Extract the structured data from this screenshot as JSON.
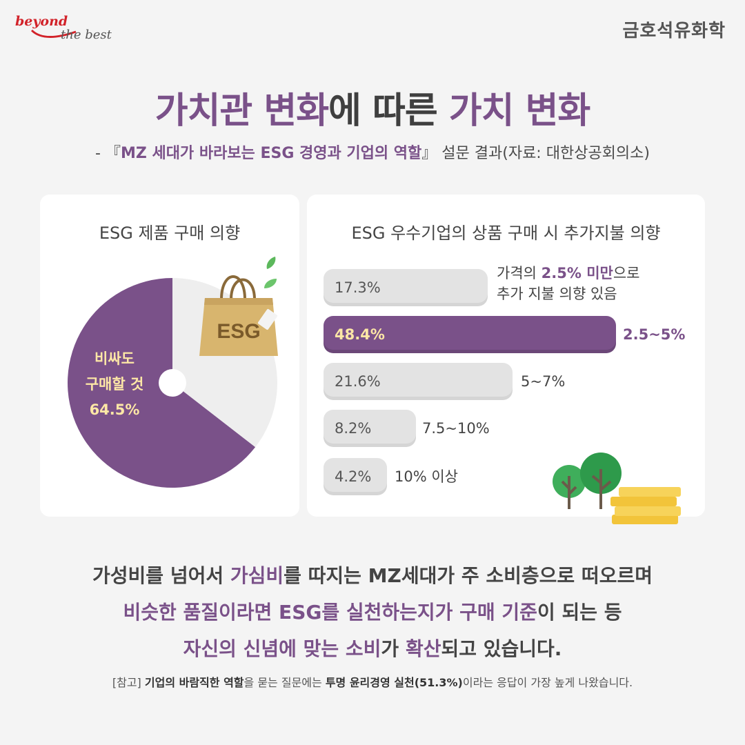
{
  "brand": {
    "tagline_1": "beyond",
    "tagline_2": "the best",
    "company": "금호석유화학"
  },
  "title": {
    "part1": "가치관 변화",
    "part2": "에 따른 ",
    "part3": "가치 변화"
  },
  "subtitle": {
    "prefix": "- 『",
    "survey": "MZ 세대가 바라보는 ESG 경영과 기업의 역할",
    "suffix": "』 설문 결과(자료: 대한상공회의소)"
  },
  "left_card": {
    "title": "ESG 제품 구매 의향",
    "pie_label_1": "비싸도",
    "pie_label_2": "구매할 것",
    "pie_value": "64.5%",
    "bag_text": "ESG"
  },
  "right_card": {
    "title": "ESG 우수기업의 상품 구매 시 추가지불 의향",
    "bars": [
      {
        "value": "17.3%",
        "label_pre": "가격의 ",
        "label_hl": "2.5% 미만",
        "label_post": "으로",
        "label_line2": "추가 지불 의향 있음"
      },
      {
        "value": "48.4%",
        "label": "2.5~5%"
      },
      {
        "value": "21.6%",
        "label": "5~7%"
      },
      {
        "value": "8.2%",
        "label": "7.5~10%"
      },
      {
        "value": "4.2%",
        "label": "10% 이상"
      }
    ]
  },
  "chart_data": [
    {
      "type": "pie",
      "title": "ESG 제품 구매 의향",
      "slices": [
        {
          "name": "비싸도 구매할 것",
          "value": 64.5
        },
        {
          "value": 35.5
        }
      ],
      "colors": [
        "#7a5189",
        "#eeeeee"
      ]
    },
    {
      "type": "bar",
      "title": "ESG 우수기업의 상품 구매 시 추가지불 의향",
      "categories": [
        "2.5% 미만",
        "2.5~5%",
        "5~7%",
        "7.5~10%",
        "10% 이상"
      ],
      "values": [
        17.3,
        48.4,
        21.6,
        8.2,
        4.2
      ],
      "colors": [
        "#e3e3e3",
        "#7a5189",
        "#e3e3e3",
        "#e3e3e3",
        "#e3e3e3"
      ]
    }
  ],
  "body": {
    "l1a": "가성비를 넘어서 ",
    "l1b": "가심비",
    "l1c": "를 따지는 MZ세대가 주 소비층으로 떠오르며",
    "l2a": "비슷한 품질이라면 ESG를 실천하는지가 구매 기준",
    "l2b": "이 되는 등",
    "l3a": "자신의 신념에 맞는 소비",
    "l3b": "가 ",
    "l3c": "확산",
    "l3d": "되고 있습니다."
  },
  "note": {
    "a": "[참고] ",
    "b": "기업의 바람직한 역할",
    "c": "을 묻는 질문에는 ",
    "d": "투명 윤리경영 실천(51.3%)",
    "e": "이라는 응답이 가장 높게 나왔습니다."
  },
  "colors": {
    "accent": "#7a5189",
    "highlight_text": "#fde7a6",
    "bar_gray": "#e3e3e3",
    "brand_red": "#d2232a"
  }
}
